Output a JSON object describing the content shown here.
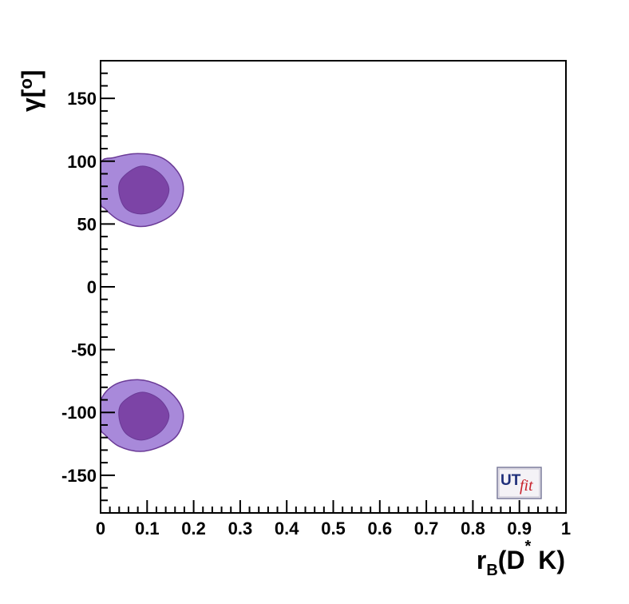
{
  "chart_data": {
    "type": "contour",
    "xlabel": {
      "main": "r",
      "sub": "B",
      "paren": "(D",
      "sup": "*",
      "tail": " K)"
    },
    "ylabel": {
      "main": "γ",
      "bracket": "[",
      "degree": "o",
      "close": "]"
    },
    "xlim": [
      0,
      1
    ],
    "ylim": [
      -180,
      180
    ],
    "x_ticks": [
      "0",
      "0.1",
      "0.2",
      "0.3",
      "0.4",
      "0.5",
      "0.6",
      "0.7",
      "0.8",
      "0.9",
      "1"
    ],
    "x_tick_values": [
      0,
      0.1,
      0.2,
      0.3,
      0.4,
      0.5,
      0.6,
      0.7,
      0.8,
      0.9,
      1
    ],
    "y_ticks": [
      "150",
      "100",
      "50",
      "0",
      "-50",
      "-100",
      "-150"
    ],
    "y_tick_values": [
      150,
      100,
      50,
      0,
      -50,
      -100,
      -150
    ],
    "regions": [
      {
        "label": "upper",
        "outer": [
          [
            0.0,
            98
          ],
          [
            0.03,
            103
          ],
          [
            0.08,
            106
          ],
          [
            0.13,
            103
          ],
          [
            0.165,
            92
          ],
          [
            0.178,
            78
          ],
          [
            0.165,
            62
          ],
          [
            0.13,
            52
          ],
          [
            0.085,
            48
          ],
          [
            0.04,
            53
          ],
          [
            0.01,
            62
          ],
          [
            0.0,
            68
          ]
        ],
        "inner": [
          [
            0.045,
            86
          ],
          [
            0.085,
            96
          ],
          [
            0.125,
            91
          ],
          [
            0.147,
            78
          ],
          [
            0.13,
            64
          ],
          [
            0.09,
            58
          ],
          [
            0.055,
            62
          ],
          [
            0.04,
            74
          ]
        ]
      },
      {
        "label": "lower",
        "outer": [
          [
            0.0,
            -91
          ],
          [
            0.03,
            -78
          ],
          [
            0.08,
            -74
          ],
          [
            0.13,
            -79
          ],
          [
            0.165,
            -90
          ],
          [
            0.178,
            -103
          ],
          [
            0.165,
            -118
          ],
          [
            0.13,
            -127
          ],
          [
            0.085,
            -131
          ],
          [
            0.04,
            -127
          ],
          [
            0.01,
            -118
          ],
          [
            0.0,
            -112
          ]
        ],
        "inner": [
          [
            0.045,
            -93
          ],
          [
            0.085,
            -84
          ],
          [
            0.125,
            -89
          ],
          [
            0.147,
            -102
          ],
          [
            0.13,
            -115
          ],
          [
            0.09,
            -122
          ],
          [
            0.055,
            -117
          ],
          [
            0.04,
            -105
          ]
        ]
      }
    ],
    "colors": {
      "outer": "#a889da",
      "inner": "#7c44a6",
      "edge": "#6a3a96"
    },
    "grid": false
  },
  "logo": {
    "ut": "UT",
    "fit": "fit"
  }
}
